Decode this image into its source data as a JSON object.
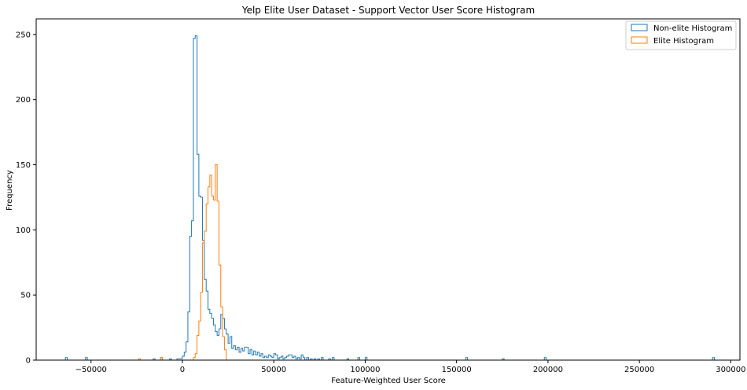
{
  "chart_data": {
    "type": "histogram",
    "title": "Yelp Elite User Dataset - Support Vector User Score Histogram",
    "xlabel": "Feature-Weighted User Score",
    "ylabel": "Frequency",
    "xlim": [
      -80000,
      305000
    ],
    "ylim": [
      0,
      262
    ],
    "x_ticks": [
      -50000,
      0,
      50000,
      100000,
      150000,
      200000,
      250000,
      300000
    ],
    "y_ticks": [
      0,
      50,
      100,
      150,
      200,
      250
    ],
    "grid": false,
    "legend_position": "top-right",
    "histtype": "step",
    "series": [
      {
        "name": "Non-elite Histogram",
        "color": "#1f77b4",
        "bins": [
          [
            -64000,
            -63000,
            2
          ],
          [
            -53000,
            -52000,
            2
          ],
          [
            -16000,
            -15000,
            1
          ],
          [
            -12000,
            -11000,
            2
          ],
          [
            -7000,
            -6000,
            1
          ],
          [
            -3000,
            -2000,
            1
          ],
          [
            -2000,
            -1000,
            1
          ],
          [
            -1000,
            0,
            1
          ],
          [
            0,
            1000,
            3
          ],
          [
            1000,
            2000,
            6
          ],
          [
            2000,
            3000,
            14
          ],
          [
            3000,
            4000,
            37
          ],
          [
            4000,
            5000,
            95
          ],
          [
            5000,
            6000,
            107
          ],
          [
            6000,
            7000,
            247
          ],
          [
            7000,
            8000,
            249
          ],
          [
            8000,
            9000,
            158
          ],
          [
            9000,
            10000,
            126
          ],
          [
            10000,
            11000,
            125
          ],
          [
            11000,
            12000,
            92
          ],
          [
            12000,
            13000,
            62
          ],
          [
            13000,
            14000,
            53
          ],
          [
            14000,
            15000,
            39
          ],
          [
            15000,
            16000,
            36
          ],
          [
            16000,
            17000,
            32
          ],
          [
            17000,
            18000,
            27
          ],
          [
            18000,
            19000,
            22
          ],
          [
            19000,
            20000,
            19
          ],
          [
            20000,
            21000,
            24
          ],
          [
            21000,
            22000,
            35
          ],
          [
            22000,
            23000,
            32
          ],
          [
            23000,
            24000,
            24
          ],
          [
            24000,
            25000,
            20
          ],
          [
            25000,
            26000,
            13
          ],
          [
            26000,
            27000,
            18
          ],
          [
            27000,
            28000,
            9
          ],
          [
            28000,
            29000,
            11
          ],
          [
            29000,
            30000,
            8
          ],
          [
            30000,
            31000,
            10
          ],
          [
            31000,
            32000,
            6
          ],
          [
            32000,
            33000,
            9
          ],
          [
            33000,
            34000,
            7
          ],
          [
            34000,
            35000,
            10
          ],
          [
            35000,
            36000,
            10
          ],
          [
            36000,
            37000,
            5
          ],
          [
            37000,
            38000,
            8
          ],
          [
            38000,
            39000,
            4
          ],
          [
            39000,
            40000,
            7
          ],
          [
            40000,
            41000,
            4
          ],
          [
            41000,
            42000,
            6
          ],
          [
            42000,
            43000,
            3
          ],
          [
            43000,
            44000,
            5
          ],
          [
            44000,
            45000,
            2
          ],
          [
            45000,
            46000,
            3
          ],
          [
            46000,
            47000,
            2
          ],
          [
            47000,
            48000,
            4
          ],
          [
            48000,
            49000,
            3
          ],
          [
            49000,
            50000,
            2
          ],
          [
            50000,
            51000,
            5
          ],
          [
            51000,
            52000,
            4
          ],
          [
            52000,
            53000,
            1
          ],
          [
            53000,
            54000,
            2
          ],
          [
            54000,
            55000,
            3
          ],
          [
            55000,
            56000,
            1
          ],
          [
            56000,
            57000,
            2
          ],
          [
            57000,
            58000,
            3
          ],
          [
            58000,
            59000,
            4
          ],
          [
            59000,
            60000,
            4
          ],
          [
            60000,
            61000,
            2
          ],
          [
            61000,
            62000,
            3
          ],
          [
            62000,
            63000,
            1
          ],
          [
            63000,
            64000,
            2
          ],
          [
            64000,
            65000,
            1
          ],
          [
            65000,
            66000,
            4
          ],
          [
            66000,
            67000,
            2
          ],
          [
            68000,
            69000,
            2
          ],
          [
            70000,
            71000,
            1
          ],
          [
            72000,
            73000,
            1
          ],
          [
            74000,
            75000,
            1
          ],
          [
            76000,
            77000,
            2
          ],
          [
            80000,
            81000,
            1
          ],
          [
            82000,
            83000,
            2
          ],
          [
            90000,
            91000,
            1
          ],
          [
            96000,
            97000,
            2
          ],
          [
            100000,
            101000,
            2
          ],
          [
            155000,
            156000,
            2
          ],
          [
            175000,
            176000,
            1
          ],
          [
            198000,
            199000,
            2
          ],
          [
            290000,
            291000,
            2
          ]
        ]
      },
      {
        "name": "Elite Histogram",
        "color": "#ff7f0e",
        "bins": [
          [
            -24000,
            -23000,
            1
          ],
          [
            -12000,
            -11000,
            2
          ],
          [
            6000,
            7000,
            2
          ],
          [
            7000,
            8000,
            5
          ],
          [
            8000,
            9000,
            19
          ],
          [
            9000,
            10000,
            30
          ],
          [
            10000,
            11000,
            52
          ],
          [
            11000,
            12000,
            90
          ],
          [
            12000,
            13000,
            99
          ],
          [
            13000,
            14000,
            120
          ],
          [
            14000,
            15000,
            133
          ],
          [
            15000,
            16000,
            142
          ],
          [
            16000,
            17000,
            126
          ],
          [
            17000,
            18000,
            123
          ],
          [
            18000,
            19000,
            150
          ],
          [
            19000,
            20000,
            122
          ],
          [
            20000,
            21000,
            73
          ],
          [
            21000,
            22000,
            41
          ],
          [
            22000,
            23000,
            18
          ],
          [
            23000,
            24000,
            8
          ]
        ]
      }
    ]
  }
}
